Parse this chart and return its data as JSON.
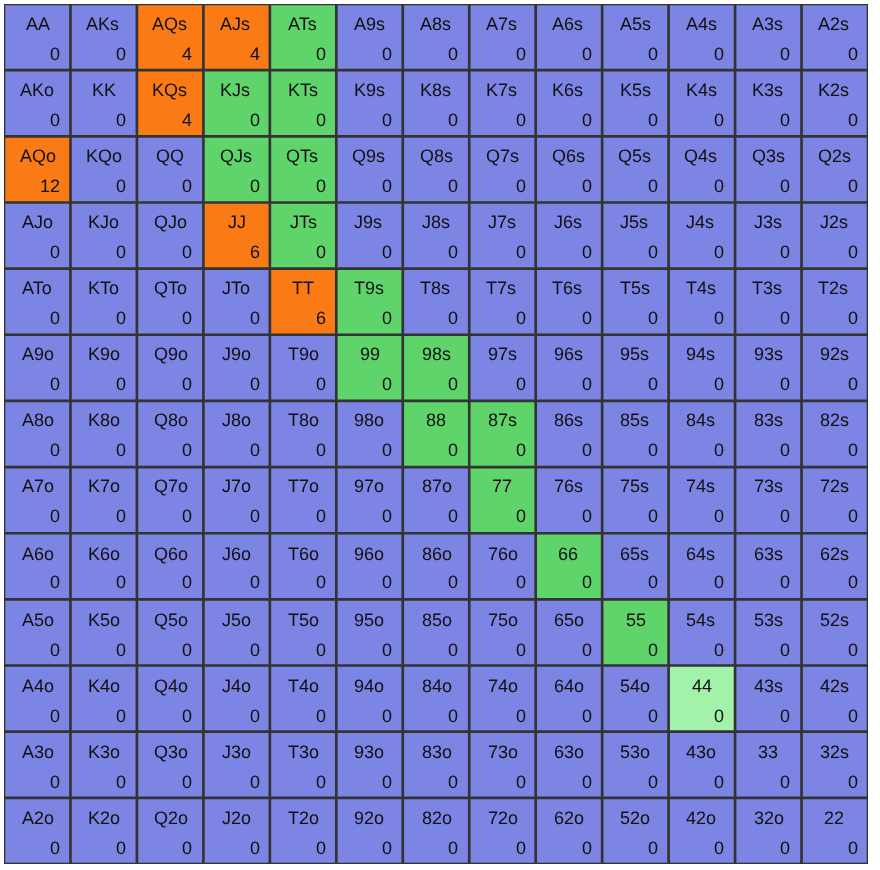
{
  "chart_data": {
    "type": "heatmap",
    "data_labels": true,
    "categories": [
      null,
      null,
      null,
      null,
      null,
      null,
      null,
      null,
      null,
      null,
      null,
      null,
      null
    ],
    "y_categories": [
      null,
      null,
      null,
      null,
      null,
      null,
      null,
      null,
      null,
      null,
      null,
      null,
      null
    ],
    "cells": [
      [
        0,
        0,
        4,
        4,
        0,
        0,
        0,
        0,
        0,
        0,
        0,
        0,
        0
      ],
      [
        0,
        0,
        4,
        0,
        0,
        0,
        0,
        0,
        0,
        0,
        0,
        0,
        0
      ],
      [
        12,
        0,
        0,
        0,
        0,
        0,
        0,
        0,
        0,
        0,
        0,
        0,
        0
      ],
      [
        0,
        0,
        0,
        6,
        0,
        0,
        0,
        0,
        0,
        0,
        0,
        0,
        0
      ],
      [
        0,
        0,
        0,
        0,
        6,
        0,
        0,
        0,
        0,
        0,
        0,
        0,
        0
      ],
      [
        0,
        0,
        0,
        0,
        0,
        0,
        0,
        0,
        0,
        0,
        0,
        0,
        0
      ],
      [
        0,
        0,
        0,
        0,
        0,
        0,
        0,
        0,
        0,
        0,
        0,
        0,
        0
      ],
      [
        0,
        0,
        0,
        0,
        0,
        0,
        0,
        0,
        0,
        0,
        0,
        0,
        0
      ],
      [
        0,
        0,
        0,
        0,
        0,
        0,
        0,
        0,
        0,
        0,
        0,
        0,
        0
      ],
      [
        0,
        0,
        0,
        0,
        0,
        0,
        0,
        0,
        0,
        0,
        0,
        0,
        0
      ],
      [
        0,
        0,
        0,
        0,
        0,
        0,
        0,
        0,
        0,
        0,
        0,
        0,
        0
      ],
      [
        0,
        0,
        0,
        0,
        0,
        0,
        0,
        0,
        0,
        0,
        0,
        0,
        0
      ],
      [
        0,
        0,
        0,
        0,
        0,
        0,
        0,
        0,
        0,
        0,
        0,
        0,
        0
      ]
    ],
    "annotations": [
      "AA",
      "AKs",
      "AQs",
      "AJs",
      "ATs",
      "A9s",
      "A8s",
      "A7s",
      "A6s",
      "A5s",
      "A4s",
      "A3s",
      "A2s",
      "AKo",
      "KK",
      "KQs",
      "KJs",
      "KTs",
      "K9s",
      "K8s",
      "K7s",
      "K6s",
      "K5s",
      "K4s",
      "K3s",
      "K2s",
      "AQo",
      "KQo",
      "QQ",
      "QJs",
      "QTs",
      "Q9s",
      "Q8s",
      "Q7s",
      "Q6s",
      "Q5s",
      "Q4s",
      "Q3s",
      "Q2s",
      "AJo",
      "KJo",
      "QJo",
      "JJ",
      "JTs",
      "J9s",
      "J8s",
      "J7s",
      "J6s",
      "J5s",
      "J4s",
      "J3s",
      "J2s",
      "ATo",
      "KTo",
      "QTo",
      "JTo",
      "TT",
      "T9s",
      "T8s",
      "T7s",
      "T6s",
      "T5s",
      "T4s",
      "T3s",
      "T2s",
      "A9o",
      "K9o",
      "Q9o",
      "J9o",
      "T9o",
      "99",
      "98s",
      "97s",
      "96s",
      "95s",
      "94s",
      "93s",
      "92s",
      "A8o",
      "K8o",
      "Q8o",
      "J8o",
      "T8o",
      "98o",
      "88",
      "87s",
      "86s",
      "85s",
      "84s",
      "83s",
      "82s",
      "A7o",
      "K7o",
      "Q7o",
      "J7o",
      "T7o",
      "97o",
      "87o",
      "77",
      "76s",
      "75s",
      "74s",
      "73s",
      "72s",
      "A6o",
      "K6o",
      "Q6o",
      "J6o",
      "T6o",
      "96o",
      "86o",
      "76o",
      "66",
      "65s",
      "64s",
      "63s",
      "62s",
      "A5o",
      "K5o",
      "Q5o",
      "J5o",
      "T5o",
      "95o",
      "85o",
      "75o",
      "65o",
      "55",
      "54s",
      "53s",
      "52s",
      "A4o",
      "K4o",
      "Q4o",
      "J4o",
      "T4o",
      "94o",
      "84o",
      "74o",
      "64o",
      "54o",
      "44",
      "43s",
      "42s",
      "A3o",
      "K3o",
      "Q3o",
      "J3o",
      "T3o",
      "93o",
      "83o",
      "73o",
      "63o",
      "53o",
      "43o",
      "33",
      "32s",
      "A2o",
      "K2o",
      "Q2o",
      "J2o",
      "T2o",
      "92o",
      "82o",
      "72o",
      "62o",
      "52o",
      "42o",
      "32o",
      "22"
    ],
    "colors": [
      [
        "#7c84e4",
        "#7c84e4",
        "#fa7a16",
        "#fa7a16",
        "#5fd46b",
        "#7c84e4",
        "#7c84e4",
        "#7c84e4",
        "#7c84e4",
        "#7c84e4",
        "#7c84e4",
        "#7c84e4",
        "#7c84e4"
      ],
      [
        "#7c84e4",
        "#7c84e4",
        "#fa7a16",
        "#5fd46b",
        "#5fd46b",
        "#7c84e4",
        "#7c84e4",
        "#7c84e4",
        "#7c84e4",
        "#7c84e4",
        "#7c84e4",
        "#7c84e4",
        "#7c84e4"
      ],
      [
        "#fa7a16",
        "#7c84e4",
        "#7c84e4",
        "#5fd46b",
        "#5fd46b",
        "#7c84e4",
        "#7c84e4",
        "#7c84e4",
        "#7c84e4",
        "#7c84e4",
        "#7c84e4",
        "#7c84e4",
        "#7c84e4"
      ],
      [
        "#7c84e4",
        "#7c84e4",
        "#7c84e4",
        "#fa7a16",
        "#5fd46b",
        "#7c84e4",
        "#7c84e4",
        "#7c84e4",
        "#7c84e4",
        "#7c84e4",
        "#7c84e4",
        "#7c84e4",
        "#7c84e4"
      ],
      [
        "#7c84e4",
        "#7c84e4",
        "#7c84e4",
        "#7c84e4",
        "#fa7a16",
        "#5fd46b",
        "#7c84e4",
        "#7c84e4",
        "#7c84e4",
        "#7c84e4",
        "#7c84e4",
        "#7c84e4",
        "#7c84e4"
      ],
      [
        "#7c84e4",
        "#7c84e4",
        "#7c84e4",
        "#7c84e4",
        "#7c84e4",
        "#5fd46b",
        "#5fd46b",
        "#7c84e4",
        "#7c84e4",
        "#7c84e4",
        "#7c84e4",
        "#7c84e4",
        "#7c84e4"
      ],
      [
        "#7c84e4",
        "#7c84e4",
        "#7c84e4",
        "#7c84e4",
        "#7c84e4",
        "#7c84e4",
        "#5fd46b",
        "#5fd46b",
        "#7c84e4",
        "#7c84e4",
        "#7c84e4",
        "#7c84e4",
        "#7c84e4"
      ],
      [
        "#7c84e4",
        "#7c84e4",
        "#7c84e4",
        "#7c84e4",
        "#7c84e4",
        "#7c84e4",
        "#7c84e4",
        "#5fd46b",
        "#7c84e4",
        "#7c84e4",
        "#7c84e4",
        "#7c84e4",
        "#7c84e4"
      ],
      [
        "#7c84e4",
        "#7c84e4",
        "#7c84e4",
        "#7c84e4",
        "#7c84e4",
        "#7c84e4",
        "#7c84e4",
        "#7c84e4",
        "#5fd46b",
        "#7c84e4",
        "#7c84e4",
        "#7c84e4",
        "#7c84e4"
      ],
      [
        "#7c84e4",
        "#7c84e4",
        "#7c84e4",
        "#7c84e4",
        "#7c84e4",
        "#7c84e4",
        "#7c84e4",
        "#7c84e4",
        "#7c84e4",
        "#5fd46b",
        "#7c84e4",
        "#7c84e4",
        "#7c84e4"
      ],
      [
        "#7c84e4",
        "#7c84e4",
        "#7c84e4",
        "#7c84e4",
        "#7c84e4",
        "#7c84e4",
        "#7c84e4",
        "#7c84e4",
        "#7c84e4",
        "#7c84e4",
        "#a3f2aa",
        "#7c84e4",
        "#7c84e4"
      ],
      [
        "#7c84e4",
        "#7c84e4",
        "#7c84e4",
        "#7c84e4",
        "#7c84e4",
        "#7c84e4",
        "#7c84e4",
        "#7c84e4",
        "#7c84e4",
        "#7c84e4",
        "#7c84e4",
        "#7c84e4",
        "#7c84e4"
      ],
      [
        "#7c84e4",
        "#7c84e4",
        "#7c84e4",
        "#7c84e4",
        "#7c84e4",
        "#7c84e4",
        "#7c84e4",
        "#7c84e4",
        "#7c84e4",
        "#7c84e4",
        "#7c84e4",
        "#7c84e4",
        "#7c84e4"
      ]
    ]
  }
}
